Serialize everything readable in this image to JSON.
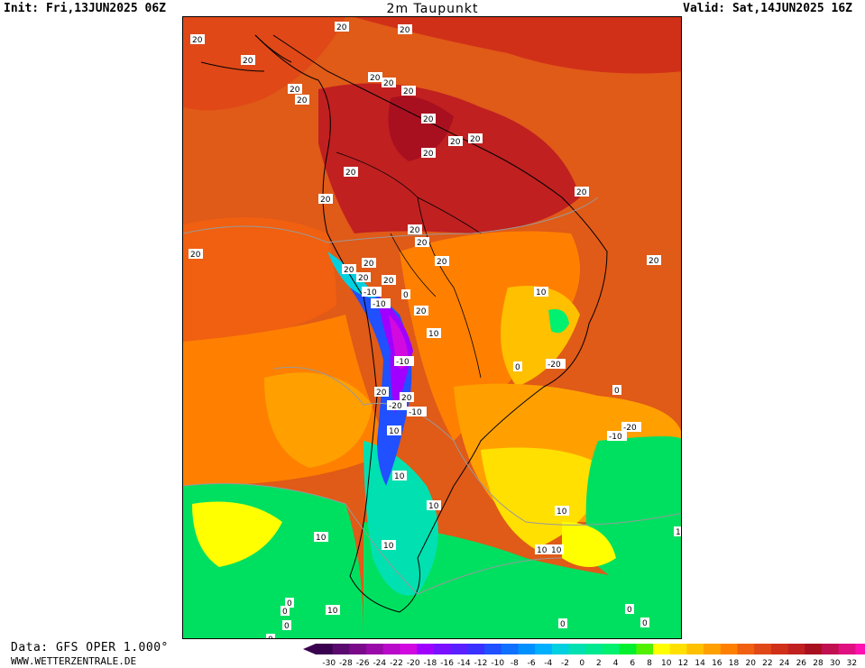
{
  "header": {
    "init": "Init: Fri,13JUN2025 06Z",
    "title": "2m Taupunkt",
    "valid": "Valid: Sat,14JUN2025 16Z"
  },
  "footer": {
    "source": "Data: GFS OPER 1.000°",
    "website": "WWW.WETTERZENTRALE.DE"
  },
  "colorbar": {
    "ticks": [
      "-30",
      "-28",
      "-26",
      "-24",
      "-22",
      "-20",
      "-18",
      "-16",
      "-14",
      "-12",
      "-10",
      "-8",
      "-6",
      "-4",
      "-2",
      "0",
      "2",
      "4",
      "6",
      "8",
      "10",
      "12",
      "14",
      "16",
      "18",
      "20",
      "22",
      "24",
      "26",
      "28",
      "30",
      "32"
    ],
    "colors": [
      "#3a0050",
      "#5a0a6e",
      "#7a0a8a",
      "#9a0aa8",
      "#b80ac8",
      "#d20ae0",
      "#a000ff",
      "#7a10ff",
      "#5a20ff",
      "#3a30ff",
      "#2050ff",
      "#1070ff",
      "#0090ff",
      "#00b0ff",
      "#00d0e0",
      "#00e0b0",
      "#00e890",
      "#00f070",
      "#00f030",
      "#50f000",
      "#ffff00",
      "#ffe000",
      "#ffc000",
      "#ffa000",
      "#ff8000",
      "#f06010",
      "#e04818",
      "#d03018",
      "#c02020",
      "#a81020",
      "#c01050",
      "#e01080",
      "#ff10b0"
    ]
  },
  "map_labels": [
    "20",
    "20",
    "20",
    "20",
    "20",
    "20",
    "20",
    "20",
    "20",
    "20",
    "20",
    "20",
    "20",
    "20",
    "20",
    "20",
    "20",
    "20",
    "20",
    "20",
    "20",
    "20",
    "20",
    "20",
    "10",
    "20",
    "0",
    "-10",
    "-10",
    "10",
    "20",
    "-10",
    "20",
    "-20",
    "20",
    "10",
    "-10",
    "10",
    "0",
    "-20",
    "0",
    "-20",
    "-10",
    "10",
    "10",
    "10",
    "10",
    "10",
    "10",
    "10",
    "0",
    "0",
    "10",
    "0",
    "0",
    "0",
    "0",
    "0"
  ],
  "legend_colors": {
    "very_humid": "#c82018",
    "humid": "#e05a18",
    "warm": "#ff8c00",
    "mild": "#ffc000",
    "cool": "#ffff00",
    "cold": "#00e060",
    "very_cold": "#00c0c0",
    "frost": "#2040ff",
    "extreme": "#c000ff"
  }
}
